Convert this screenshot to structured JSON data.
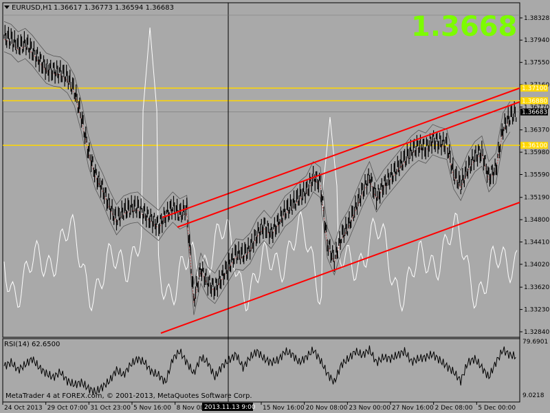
{
  "header": {
    "symbol_label": "EURUSD,H1",
    "ohlc_text": "1.36617 1.36773 1.36594 1.36683"
  },
  "big_price": "1.3668",
  "copyright": "MetaTrader 4 at FOREX.com, © 2001-2013, MetaQuotes Software Corp.",
  "crosshair_time_label": "2013.11.13 9:00",
  "colors": {
    "background": "#a9a9a9",
    "candles": "#000000",
    "bands": "#555555",
    "oscillator": "#ffffff",
    "channel": "#ff0000",
    "level_lines": "#ffd700",
    "big_price": "#7cfc00"
  },
  "chart_data": [
    {
      "type": "line",
      "title": "EURUSD,H1",
      "price_axis_ticks": [
        "1.38328",
        "1.37940",
        "1.37550",
        "1.37160",
        "1.36770",
        "1.36370",
        "1.35980",
        "1.35590",
        "1.35190",
        "1.34800",
        "1.34410",
        "1.34020",
        "1.33620",
        "1.33230",
        "1.32840"
      ],
      "price_tick_values": [
        1.38328,
        1.3794,
        1.3755,
        1.3716,
        1.3677,
        1.3637,
        1.3598,
        1.3559,
        1.3519,
        1.348,
        1.3441,
        1.3402,
        1.3362,
        1.3323,
        1.3284
      ],
      "ylim": [
        1.3284,
        1.38328
      ],
      "time_axis_ticks": [
        "24 Oct 2013",
        "29 Oct 07:00",
        "31 Oct 23:00",
        "5 Nov 16:00",
        "8 Nov 08:00",
        "13 Nov",
        "15 Nov 16:00",
        "20 Nov 08:00",
        "23 Nov 00:00",
        "27 Nov 16:00",
        "2 Dec 08:00",
        "5 Dec 00:00"
      ],
      "current_price": "1.36683",
      "horizontal_levels": [
        {
          "label": "1.37100",
          "value": 1.371
        },
        {
          "label": "1.36880",
          "value": 1.3688
        },
        {
          "label": "1.36100",
          "value": 1.361
        }
      ],
      "series": [
        {
          "values": [
            1.38,
            1.3795,
            1.3782,
            1.3788,
            1.3776,
            1.376,
            1.3745,
            1.374,
            1.3738,
            1.3728,
            1.3706,
            1.366,
            1.36,
            1.356,
            1.3535,
            1.3505,
            1.348,
            1.3495,
            1.35,
            1.3502,
            1.349,
            1.348,
            1.347,
            1.3488,
            1.3502,
            1.349,
            1.3496,
            1.334,
            1.3395,
            1.337,
            1.336,
            1.338,
            1.34,
            1.342,
            1.3418,
            1.343,
            1.3455,
            1.347,
            1.3456,
            1.3475,
            1.3495,
            1.3505,
            1.352,
            1.353,
            1.3555,
            1.3545,
            1.344,
            1.341,
            1.345,
            1.347,
            1.35,
            1.353,
            1.3555,
            1.352,
            1.354,
            1.3555,
            1.357,
            1.3585,
            1.36,
            1.361,
            1.3605,
            1.362,
            1.3615,
            1.3612,
            1.356,
            1.354,
            1.357,
            1.359,
            1.36,
            1.3555,
            1.357,
            1.364,
            1.366,
            1.3668
          ]
        }
      ]
    },
    {
      "type": "line",
      "title": "RSI(14) 62.6500",
      "axis_ticks": [
        "79.6901",
        "9.0218"
      ],
      "ylim": [
        9.0218,
        79.6901
      ],
      "series": [
        {
          "values": [
            50,
            55,
            45,
            52,
            60,
            48,
            40,
            35,
            42,
            30,
            25,
            28,
            20,
            15,
            22,
            30,
            45,
            38,
            52,
            60,
            55,
            42,
            38,
            28,
            60,
            70,
            55,
            40,
            62,
            55,
            35,
            50,
            58,
            66,
            48,
            62,
            70,
            60,
            55,
            58,
            70,
            66,
            55,
            62,
            72,
            58,
            40,
            28,
            52,
            60,
            70,
            65,
            72,
            55,
            62,
            60,
            65,
            70,
            56,
            60,
            62,
            66,
            58,
            50,
            42,
            30,
            55,
            60,
            48,
            35,
            55,
            72,
            65,
            62.65
          ]
        }
      ]
    }
  ]
}
